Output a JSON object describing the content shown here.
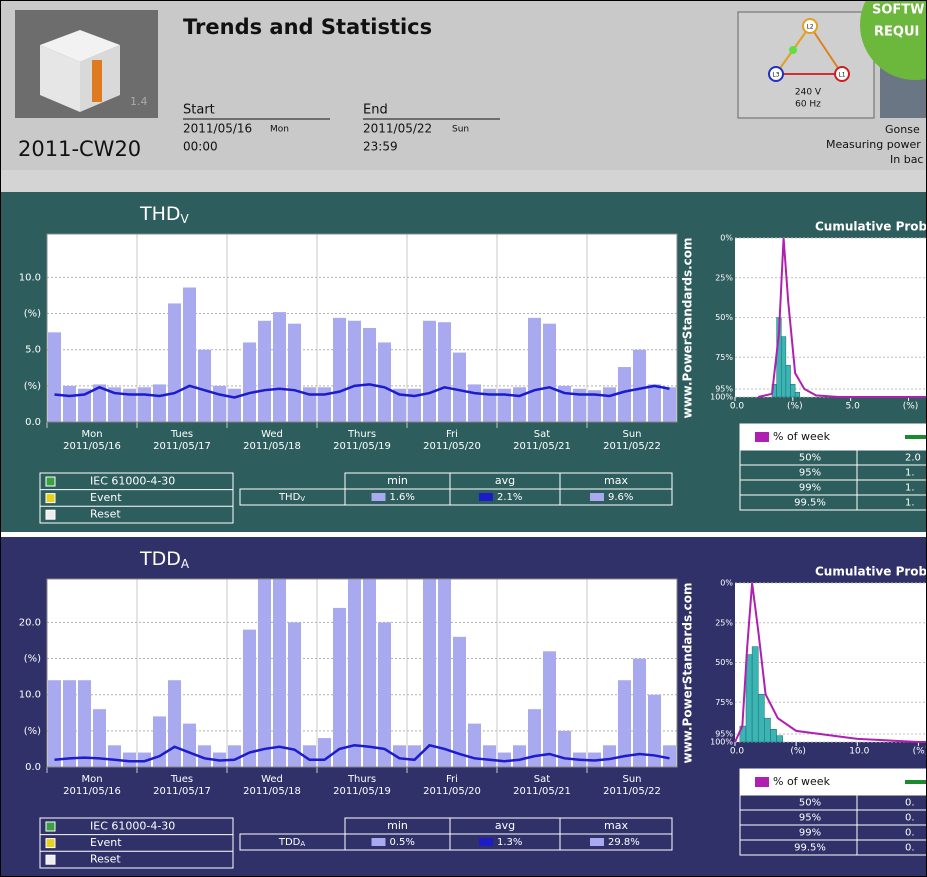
{
  "header": {
    "title": "Trends and Statistics",
    "week": "2011-CW20",
    "logo_version": "1.4",
    "start": {
      "label": "Start",
      "date": "2011/05/16",
      "weekday": "Mon",
      "time": "00:00"
    },
    "end": {
      "label": "End",
      "date": "2011/05/22",
      "weekday": "Sun",
      "time": "23:59"
    },
    "phases": [
      "L1",
      "L2",
      "L3"
    ],
    "voltage": "240 V",
    "frequency": "60 Hz",
    "site": [
      "Gonse",
      "Measuring power",
      "In bac"
    ],
    "badge": [
      "SOFTW",
      "REQUI"
    ]
  },
  "days": [
    {
      "name": "Mon",
      "date": "2011/05/16"
    },
    {
      "name": "Tues",
      "date": "2011/05/17"
    },
    {
      "name": "Wed",
      "date": "2011/05/18"
    },
    {
      "name": "Thurs",
      "date": "2011/05/19"
    },
    {
      "name": "Fri",
      "date": "2011/05/20"
    },
    {
      "name": "Sat",
      "date": "2011/05/21"
    },
    {
      "name": "Sun",
      "date": "2011/05/22"
    }
  ],
  "panels": [
    {
      "title": "THD",
      "title_sub": "V",
      "color": "#2e5d5d",
      "watermark": "www.PowerStandards.com",
      "trend": {
        "type": "bar-line",
        "ylim": [
          0,
          13
        ],
        "yticks": [
          {
            "value": 0,
            "label": "0.0"
          },
          {
            "value": 2.5,
            "label": "(%)"
          },
          {
            "value": 5,
            "label": "5.0"
          },
          {
            "value": 7.5,
            "label": "(%)"
          },
          {
            "value": 10,
            "label": "10.0"
          }
        ],
        "series": [
          {
            "color": "#a9a9ef",
            "values": [
              6.2,
              2.5,
              2.3,
              2.6,
              2.4,
              2.3,
              2.4,
              2.6,
              8.2,
              9.3,
              5.0,
              2.5,
              2.3,
              5.5,
              7.0,
              7.6,
              6.8,
              2.4,
              2.4,
              7.2,
              7.0,
              6.5,
              5.5,
              2.3,
              2.3,
              7.0,
              6.9,
              4.8,
              2.6,
              2.3,
              2.3,
              2.4,
              7.2,
              6.8,
              2.5,
              2.3,
              2.2,
              2.4,
              3.8,
              5.0,
              2.6,
              2.4
            ]
          },
          {
            "color": "#1c1cc8",
            "values": [
              1.9,
              1.8,
              1.9,
              2.4,
              2.0,
              1.9,
              1.9,
              1.8,
              2.0,
              2.5,
              2.2,
              1.9,
              1.7,
              2.0,
              2.2,
              2.3,
              2.2,
              1.9,
              1.9,
              2.1,
              2.5,
              2.6,
              2.4,
              1.9,
              1.8,
              2.0,
              2.4,
              2.2,
              2.0,
              1.9,
              1.9,
              1.8,
              2.2,
              2.4,
              2.0,
              1.9,
              1.9,
              1.8,
              2.1,
              2.3,
              2.5,
              2.3
            ]
          }
        ]
      },
      "legend": [
        "IEC 61000-4-30",
        "Event",
        "Reset"
      ],
      "stats": {
        "columns": [
          "min",
          "avg",
          "max"
        ],
        "row_label": "THD",
        "row_label_sub": "V",
        "values": [
          "1.6%",
          "2.1%",
          "9.6%"
        ],
        "colors": [
          "#a9a9ef",
          "#1c1cc8",
          "#a9a9ef"
        ]
      },
      "cumulative": {
        "title": "Cumulative Proba",
        "xlim": [
          0,
          8.3
        ],
        "xticks": [
          {
            "value": 0,
            "label": "0.0"
          },
          {
            "value": 2.5,
            "label": "(%)"
          },
          {
            "value": 5,
            "label": "5.0"
          },
          {
            "value": 7.5,
            "label": "(%)"
          }
        ],
        "ylim": [
          0,
          100
        ],
        "y_reversed": true,
        "yticks": [
          {
            "value": 0,
            "label": "0%"
          },
          {
            "value": 25,
            "label": "25%"
          },
          {
            "value": 50,
            "label": "50%"
          },
          {
            "value": 75,
            "label": "75%"
          },
          {
            "value": 95,
            "label": "95%"
          },
          {
            "value": 100,
            "label": "100%"
          }
        ],
        "bins": [
          1.6,
          1.8,
          2.0,
          2.2,
          2.4,
          2.6,
          2.8
        ],
        "counts": [
          8,
          50,
          38,
          20,
          8,
          3
        ],
        "bar_color": "#3cb4b4",
        "curve": {
          "color": "#b020b0",
          "x": [
            1.0,
            1.6,
            1.9,
            2.1,
            2.3,
            2.6,
            3.0,
            3.5,
            4.5,
            8.3
          ],
          "y": [
            100,
            98,
            60,
            0,
            40,
            85,
            95,
            99,
            100,
            100
          ]
        }
      },
      "percentiles": {
        "header": "% of week",
        "rows": [
          [
            "50%",
            "2.0"
          ],
          [
            "95%",
            "1."
          ],
          [
            "99%",
            "1."
          ],
          [
            "99.5%",
            "1."
          ]
        ]
      }
    },
    {
      "title": "TDD",
      "title_sub": "A",
      "color": "#31316a",
      "watermark": "www.PowerStandards.com",
      "trend": {
        "type": "bar-line",
        "ylim": [
          0,
          26
        ],
        "yticks": [
          {
            "value": 0,
            "label": "0.0"
          },
          {
            "value": 5,
            "label": "(%)"
          },
          {
            "value": 10,
            "label": "10.0"
          },
          {
            "value": 15,
            "label": "(%)"
          },
          {
            "value": 20,
            "label": "20.0"
          }
        ],
        "series": [
          {
            "color": "#a9a9ef",
            "values": [
              12,
              12,
              12,
              8,
              3,
              2,
              2,
              7,
              12,
              6,
              3,
              2,
              3,
              19,
              26,
              26,
              20,
              3,
              4,
              22,
              26,
              26,
              20,
              3,
              3,
              26,
              26,
              18,
              6,
              3,
              2,
              3,
              8,
              16,
              5,
              2,
              2,
              3,
              12,
              15,
              10,
              3
            ]
          },
          {
            "color": "#1c1cc8",
            "values": [
              1.0,
              1.2,
              1.3,
              1.2,
              1.0,
              0.8,
              0.8,
              1.5,
              2.8,
              2.0,
              1.2,
              0.9,
              1.0,
              2.0,
              2.5,
              2.8,
              2.4,
              1.0,
              1.0,
              2.5,
              3.0,
              2.8,
              2.5,
              1.2,
              1.0,
              3.0,
              2.5,
              1.8,
              1.2,
              1.0,
              0.8,
              1.0,
              1.5,
              1.8,
              1.2,
              1.0,
              0.9,
              1.1,
              1.5,
              1.8,
              1.6,
              1.2
            ]
          }
        ]
      },
      "legend": [
        "IEC 61000-4-30",
        "Event",
        "Reset"
      ],
      "stats": {
        "columns": [
          "min",
          "avg",
          "max"
        ],
        "row_label": "TDD",
        "row_label_sub": "A",
        "values": [
          "0.5%",
          "1.3%",
          "29.8%"
        ],
        "colors": [
          "#a9a9ef",
          "#1c1cc8",
          "#a9a9ef"
        ]
      },
      "cumulative": {
        "title": "Cumulative Proba",
        "xlim": [
          0,
          15.7
        ],
        "xticks": [
          {
            "value": 0,
            "label": "0.0"
          },
          {
            "value": 5,
            "label": "(%)"
          },
          {
            "value": 10,
            "label": "10.0"
          },
          {
            "value": 15,
            "label": "(%)"
          }
        ],
        "ylim": [
          0,
          100
        ],
        "y_reversed": true,
        "yticks": [
          {
            "value": 0,
            "label": "0%"
          },
          {
            "value": 25,
            "label": "25%"
          },
          {
            "value": 50,
            "label": "50%"
          },
          {
            "value": 75,
            "label": "75%"
          },
          {
            "value": 95,
            "label": "95%"
          },
          {
            "value": 100,
            "label": "100%"
          }
        ],
        "bins": [
          0.4,
          0.9,
          1.4,
          1.9,
          2.4,
          2.9,
          3.4,
          3.9
        ],
        "counts": [
          10,
          55,
          60,
          30,
          15,
          8,
          4
        ],
        "bar_color": "#3cb4b4",
        "curve": {
          "color": "#b020b0",
          "x": [
            0,
            0.6,
            1.0,
            1.4,
            1.9,
            2.5,
            3.5,
            5,
            10,
            15,
            15.7
          ],
          "y": [
            100,
            90,
            40,
            0,
            30,
            70,
            85,
            93,
            98,
            100,
            100
          ]
        }
      },
      "percentiles": {
        "header": "% of week",
        "rows": [
          [
            "50%",
            "0."
          ],
          [
            "95%",
            "0."
          ],
          [
            "99%",
            "0."
          ],
          [
            "99.5%",
            "0."
          ]
        ]
      }
    }
  ]
}
